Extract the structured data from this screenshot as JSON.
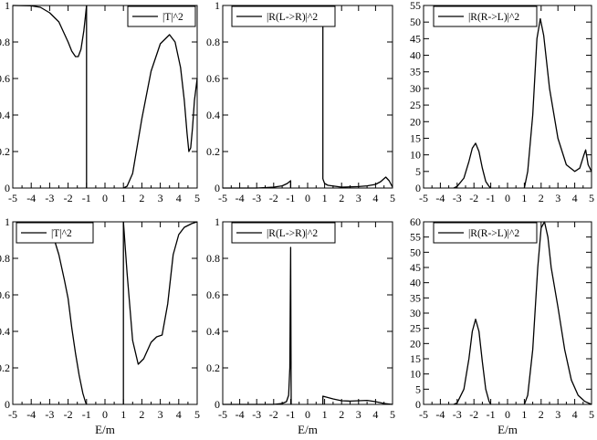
{
  "chart_data": [
    {
      "type": "line",
      "legend": "|T|^2",
      "xlim": [
        -5,
        5
      ],
      "ylim": [
        0,
        1
      ],
      "xticks": [
        -5,
        -4,
        -3,
        -2,
        -1,
        0,
        1,
        2,
        3,
        4,
        5
      ],
      "yticks": [
        0,
        0.2,
        0.4,
        0.6,
        0.8,
        1
      ],
      "xlabel": "",
      "segments": [
        [
          [
            -5,
            1
          ],
          [
            -4,
            0.998
          ],
          [
            -3.5,
            0.99
          ],
          [
            -3,
            0.96
          ],
          [
            -2.5,
            0.91
          ],
          [
            -2,
            0.8
          ],
          [
            -1.8,
            0.75
          ],
          [
            -1.6,
            0.72
          ],
          [
            -1.45,
            0.72
          ],
          [
            -1.3,
            0.76
          ],
          [
            -1.15,
            0.86
          ],
          [
            -1.05,
            0.95
          ],
          [
            -1,
            1
          ]
        ],
        [
          [
            -1,
            1
          ],
          [
            -1,
            0
          ]
        ],
        [
          [
            1,
            0
          ],
          [
            1.2,
            0.01
          ],
          [
            1.5,
            0.08
          ],
          [
            2,
            0.38
          ],
          [
            2.5,
            0.64
          ],
          [
            3,
            0.79
          ],
          [
            3.5,
            0.84
          ],
          [
            3.8,
            0.8
          ],
          [
            4.1,
            0.66
          ],
          [
            4.3,
            0.48
          ],
          [
            4.45,
            0.3
          ],
          [
            4.55,
            0.2
          ],
          [
            4.65,
            0.22
          ],
          [
            4.75,
            0.33
          ],
          [
            4.85,
            0.48
          ],
          [
            5,
            0.6
          ]
        ]
      ]
    },
    {
      "type": "line",
      "legend": "|R(L->R)|^2",
      "xlim": [
        -5,
        5
      ],
      "ylim": [
        0,
        1
      ],
      "xticks": [
        -5,
        -4,
        -3,
        -2,
        -1,
        0,
        1,
        2,
        3,
        4,
        5
      ],
      "yticks": [
        0,
        0.2,
        0.4,
        0.6,
        0.8,
        1
      ],
      "xlabel": "",
      "segments": [
        [
          [
            -5,
            0
          ],
          [
            -3,
            0
          ],
          [
            -2,
            0.005
          ],
          [
            -1.5,
            0.012
          ],
          [
            -1.2,
            0.025
          ],
          [
            -1,
            0.04
          ],
          [
            -1,
            0
          ]
        ],
        [
          [
            0.9,
            0.91
          ],
          [
            0.9,
            0.05
          ]
        ],
        [
          [
            0.9,
            0.05
          ],
          [
            1,
            0.025
          ],
          [
            1.2,
            0.015
          ],
          [
            2,
            0.005
          ],
          [
            3,
            0.008
          ],
          [
            3.5,
            0.012
          ],
          [
            4,
            0.02
          ],
          [
            4.3,
            0.035
          ],
          [
            4.6,
            0.06
          ],
          [
            4.8,
            0.04
          ],
          [
            5,
            0.005
          ]
        ]
      ]
    },
    {
      "type": "line",
      "legend": "|R(R->L)|^2",
      "xlim": [
        -5,
        5
      ],
      "ylim": [
        0,
        55
      ],
      "xticks": [
        -5,
        -4,
        -3,
        -2,
        -1,
        0,
        1,
        2,
        3,
        4,
        5
      ],
      "yticks": [
        0,
        5,
        10,
        15,
        20,
        25,
        30,
        35,
        40,
        45,
        50,
        55
      ],
      "xlabel": "",
      "segments": [
        [
          [
            -3.2,
            0
          ],
          [
            -3,
            0.5
          ],
          [
            -2.6,
            3
          ],
          [
            -2.3,
            8
          ],
          [
            -2.1,
            12
          ],
          [
            -1.9,
            13.5
          ],
          [
            -1.7,
            11
          ],
          [
            -1.5,
            6
          ],
          [
            -1.3,
            2
          ],
          [
            -1.1,
            0.5
          ],
          [
            -1,
            0
          ]
        ],
        [
          [
            1,
            0
          ],
          [
            1.2,
            5
          ],
          [
            1.5,
            22
          ],
          [
            1.75,
            45
          ],
          [
            1.95,
            51
          ],
          [
            2.15,
            46
          ],
          [
            2.5,
            30
          ],
          [
            3,
            15
          ],
          [
            3.5,
            7
          ],
          [
            4,
            5
          ],
          [
            4.3,
            6
          ],
          [
            4.55,
            10
          ],
          [
            4.65,
            11.5
          ],
          [
            4.8,
            7
          ],
          [
            5,
            5
          ]
        ]
      ]
    },
    {
      "type": "line",
      "legend": "|T|^2",
      "xlim": [
        -5,
        5
      ],
      "ylim": [
        0,
        1
      ],
      "xticks": [
        -5,
        -4,
        -3,
        -2,
        -1,
        0,
        1,
        2,
        3,
        4,
        5
      ],
      "yticks": [
        0,
        0.2,
        0.4,
        0.6,
        0.8,
        1
      ],
      "xlabel": "E/m",
      "segments": [
        [
          [
            -3,
            1
          ],
          [
            -2.8,
            0.92
          ],
          [
            -2.5,
            0.82
          ],
          [
            -2.2,
            0.68
          ],
          [
            -2,
            0.58
          ],
          [
            -1.8,
            0.42
          ],
          [
            -1.6,
            0.28
          ],
          [
            -1.4,
            0.16
          ],
          [
            -1.2,
            0.06
          ],
          [
            -1.05,
            0.01
          ],
          [
            -1,
            0
          ]
        ],
        [
          [
            1,
            0
          ],
          [
            1,
            1
          ]
        ],
        [
          [
            1,
            1
          ],
          [
            1.2,
            0.72
          ],
          [
            1.5,
            0.35
          ],
          [
            1.8,
            0.22
          ],
          [
            2.1,
            0.25
          ],
          [
            2.5,
            0.34
          ],
          [
            2.8,
            0.37
          ],
          [
            3.1,
            0.38
          ],
          [
            3.4,
            0.55
          ],
          [
            3.7,
            0.82
          ],
          [
            4,
            0.93
          ],
          [
            4.3,
            0.97
          ],
          [
            4.7,
            0.99
          ],
          [
            5,
            1
          ]
        ]
      ]
    },
    {
      "type": "line",
      "legend": "|R(L->R)|^2",
      "xlim": [
        -5,
        5
      ],
      "ylim": [
        0,
        1
      ],
      "xticks": [
        -5,
        -4,
        -3,
        -2,
        -1,
        0,
        1,
        2,
        3,
        4,
        5
      ],
      "yticks": [
        0,
        0.2,
        0.4,
        0.6,
        0.8,
        1
      ],
      "xlabel": "E/m",
      "segments": [
        [
          [
            -5,
            0
          ],
          [
            -2,
            0
          ],
          [
            -1.5,
            0.005
          ],
          [
            -1.25,
            0.015
          ],
          [
            -1.12,
            0.05
          ],
          [
            -1.05,
            0.2
          ],
          [
            -1,
            0.86
          ],
          [
            -0.97,
            0
          ]
        ],
        [
          [
            0.9,
            0
          ],
          [
            0.9,
            0.045
          ],
          [
            1.5,
            0.03
          ],
          [
            2,
            0.02
          ],
          [
            2.5,
            0.018
          ],
          [
            3,
            0.02
          ],
          [
            3.5,
            0.022
          ],
          [
            4,
            0.015
          ],
          [
            4.5,
            0.005
          ],
          [
            5,
            0
          ]
        ]
      ]
    },
    {
      "type": "line",
      "legend": "|R(R->L)|^2",
      "xlim": [
        -5,
        5
      ],
      "ylim": [
        0,
        60
      ],
      "xticks": [
        -5,
        -4,
        -3,
        -2,
        -1,
        0,
        1,
        2,
        3,
        4,
        5
      ],
      "yticks": [
        0,
        5,
        10,
        15,
        20,
        25,
        30,
        35,
        40,
        45,
        50,
        55,
        60
      ],
      "xlabel": "E/m",
      "segments": [
        [
          [
            -3.2,
            0
          ],
          [
            -3,
            0.5
          ],
          [
            -2.6,
            5
          ],
          [
            -2.3,
            15
          ],
          [
            -2.1,
            24
          ],
          [
            -1.9,
            28
          ],
          [
            -1.7,
            24
          ],
          [
            -1.5,
            14
          ],
          [
            -1.3,
            5
          ],
          [
            -1.1,
            1
          ],
          [
            -1,
            0
          ]
        ],
        [
          [
            1,
            0
          ],
          [
            1.2,
            3
          ],
          [
            1.5,
            18
          ],
          [
            1.8,
            45
          ],
          [
            2,
            58
          ],
          [
            2.2,
            60
          ],
          [
            2.4,
            55
          ],
          [
            2.6,
            45
          ],
          [
            3,
            32
          ],
          [
            3.4,
            18
          ],
          [
            3.8,
            8
          ],
          [
            4.2,
            3
          ],
          [
            4.6,
            1
          ],
          [
            5,
            0
          ]
        ]
      ]
    }
  ]
}
